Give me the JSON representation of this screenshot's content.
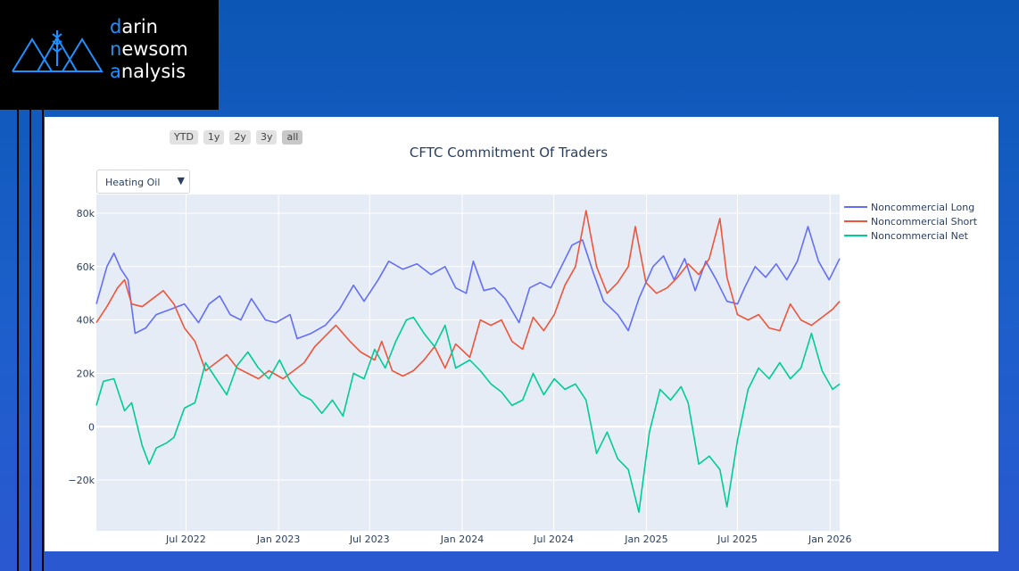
{
  "logo": {
    "line1_first": "d",
    "line1_rest": "arin",
    "line2_first": "n",
    "line2_mid": "ew",
    "line2_rest": "som",
    "line3_first": "a",
    "line3_rest": "nalysis"
  },
  "range_buttons": [
    "YTD",
    "1y",
    "2y",
    "3y",
    "all"
  ],
  "active_range": "all",
  "selector": {
    "value": "Heating Oil",
    "arrow": "▼"
  },
  "colors": {
    "long": "#636efa",
    "short": "#ef553b",
    "net": "#00cc96",
    "plot_bg": "#e5ecf6",
    "text": "#2a3f5f"
  },
  "chart_data": {
    "type": "line",
    "title": "CFTC Commitment Of Traders",
    "x_ticks": [
      "Jul 2022",
      "Jan 2023",
      "Jul 2023",
      "Jan 2024",
      "Jul 2024",
      "Jan 2025",
      "Jul 2025",
      "Jan 2026"
    ],
    "x_range": [
      "2022-01-04",
      "2026-01-20"
    ],
    "ylim": [
      -39000,
      87000
    ],
    "y_ticks": [
      {
        "v": 80000,
        "label": "80k"
      },
      {
        "v": 60000,
        "label": "60k"
      },
      {
        "v": 40000,
        "label": "40k"
      },
      {
        "v": 20000,
        "label": "20k"
      },
      {
        "v": 0,
        "label": "0"
      },
      {
        "v": -20000,
        "label": "−20k"
      }
    ],
    "legend_position": "top-right",
    "series": [
      {
        "name": "Noncommercial Long",
        "color": "#636efa",
        "points": [
          [
            "2022-01-04",
            46000
          ],
          [
            "2022-01-25",
            60000
          ],
          [
            "2022-02-08",
            65000
          ],
          [
            "2022-02-22",
            59000
          ],
          [
            "2022-03-08",
            55000
          ],
          [
            "2022-03-22",
            35000
          ],
          [
            "2022-04-12",
            37000
          ],
          [
            "2022-05-03",
            42000
          ],
          [
            "2022-05-31",
            44000
          ],
          [
            "2022-06-28",
            46000
          ],
          [
            "2022-07-26",
            39000
          ],
          [
            "2022-08-16",
            46000
          ],
          [
            "2022-09-06",
            49000
          ],
          [
            "2022-09-27",
            42000
          ],
          [
            "2022-10-18",
            40000
          ],
          [
            "2022-11-08",
            48000
          ],
          [
            "2022-12-06",
            40000
          ],
          [
            "2022-12-27",
            39000
          ],
          [
            "2023-01-24",
            42000
          ],
          [
            "2023-02-07",
            33000
          ],
          [
            "2023-03-07",
            35000
          ],
          [
            "2023-04-04",
            38000
          ],
          [
            "2023-05-02",
            44000
          ],
          [
            "2023-05-30",
            53000
          ],
          [
            "2023-06-20",
            47000
          ],
          [
            "2023-07-18",
            55000
          ],
          [
            "2023-08-08",
            62000
          ],
          [
            "2023-09-05",
            59000
          ],
          [
            "2023-10-03",
            61000
          ],
          [
            "2023-10-31",
            57000
          ],
          [
            "2023-11-28",
            60000
          ],
          [
            "2023-12-19",
            52000
          ],
          [
            "2024-01-09",
            50000
          ],
          [
            "2024-01-23",
            62000
          ],
          [
            "2024-02-13",
            51000
          ],
          [
            "2024-03-05",
            52000
          ],
          [
            "2024-03-26",
            48000
          ],
          [
            "2024-04-23",
            39000
          ],
          [
            "2024-05-14",
            52000
          ],
          [
            "2024-06-04",
            54000
          ],
          [
            "2024-06-25",
            52000
          ],
          [
            "2024-07-16",
            60000
          ],
          [
            "2024-08-06",
            68000
          ],
          [
            "2024-08-27",
            70000
          ],
          [
            "2024-09-17",
            58000
          ],
          [
            "2024-10-08",
            47000
          ],
          [
            "2024-11-05",
            42000
          ],
          [
            "2024-11-26",
            36000
          ],
          [
            "2024-12-17",
            48000
          ],
          [
            "2025-01-14",
            60000
          ],
          [
            "2025-02-04",
            64000
          ],
          [
            "2025-02-25",
            55000
          ],
          [
            "2025-03-18",
            63000
          ],
          [
            "2025-04-08",
            51000
          ],
          [
            "2025-04-29",
            62000
          ],
          [
            "2025-05-20",
            55000
          ],
          [
            "2025-06-10",
            47000
          ],
          [
            "2025-07-01",
            46000
          ],
          [
            "2025-07-15",
            52000
          ],
          [
            "2025-08-05",
            60000
          ],
          [
            "2025-08-26",
            56000
          ],
          [
            "2025-09-16",
            61000
          ],
          [
            "2025-10-07",
            55000
          ],
          [
            "2025-10-28",
            62000
          ],
          [
            "2025-11-18",
            75000
          ],
          [
            "2025-12-09",
            62000
          ],
          [
            "2025-12-30",
            55000
          ],
          [
            "2026-01-20",
            63000
          ]
        ]
      },
      {
        "name": "Noncommercial Short",
        "color": "#ef553b",
        "points": [
          [
            "2022-01-04",
            39000
          ],
          [
            "2022-01-25",
            45000
          ],
          [
            "2022-02-15",
            52000
          ],
          [
            "2022-03-01",
            55000
          ],
          [
            "2022-03-15",
            46000
          ],
          [
            "2022-04-05",
            45000
          ],
          [
            "2022-04-26",
            48000
          ],
          [
            "2022-05-17",
            51000
          ],
          [
            "2022-06-07",
            46000
          ],
          [
            "2022-06-28",
            37000
          ],
          [
            "2022-07-19",
            32000
          ],
          [
            "2022-08-09",
            21000
          ],
          [
            "2022-08-30",
            24000
          ],
          [
            "2022-09-20",
            27000
          ],
          [
            "2022-10-11",
            22000
          ],
          [
            "2022-11-01",
            20000
          ],
          [
            "2022-11-22",
            18000
          ],
          [
            "2022-12-13",
            21000
          ],
          [
            "2023-01-10",
            18000
          ],
          [
            "2023-01-31",
            21000
          ],
          [
            "2023-02-21",
            24000
          ],
          [
            "2023-03-14",
            30000
          ],
          [
            "2023-04-04",
            34000
          ],
          [
            "2023-04-25",
            38000
          ],
          [
            "2023-05-23",
            32000
          ],
          [
            "2023-06-13",
            28000
          ],
          [
            "2023-07-11",
            25000
          ],
          [
            "2023-07-25",
            32000
          ],
          [
            "2023-08-15",
            21000
          ],
          [
            "2023-09-05",
            19000
          ],
          [
            "2023-09-26",
            21000
          ],
          [
            "2023-10-17",
            25000
          ],
          [
            "2023-11-07",
            30000
          ],
          [
            "2023-11-28",
            22000
          ],
          [
            "2023-12-19",
            31000
          ],
          [
            "2024-01-16",
            26000
          ],
          [
            "2024-02-06",
            40000
          ],
          [
            "2024-02-27",
            38000
          ],
          [
            "2024-03-19",
            40000
          ],
          [
            "2024-04-09",
            32000
          ],
          [
            "2024-04-30",
            29000
          ],
          [
            "2024-05-21",
            41000
          ],
          [
            "2024-06-11",
            36000
          ],
          [
            "2024-07-02",
            42000
          ],
          [
            "2024-07-23",
            53000
          ],
          [
            "2024-08-13",
            60000
          ],
          [
            "2024-09-03",
            81000
          ],
          [
            "2024-09-24",
            60000
          ],
          [
            "2024-10-15",
            50000
          ],
          [
            "2024-11-05",
            54000
          ],
          [
            "2024-11-26",
            60000
          ],
          [
            "2024-12-10",
            75000
          ],
          [
            "2024-12-31",
            54000
          ],
          [
            "2025-01-21",
            50000
          ],
          [
            "2025-02-11",
            52000
          ],
          [
            "2025-03-04",
            56000
          ],
          [
            "2025-03-25",
            61000
          ],
          [
            "2025-04-15",
            57000
          ],
          [
            "2025-05-06",
            63000
          ],
          [
            "2025-05-27",
            78000
          ],
          [
            "2025-06-10",
            56000
          ],
          [
            "2025-07-01",
            42000
          ],
          [
            "2025-07-22",
            40000
          ],
          [
            "2025-08-12",
            42000
          ],
          [
            "2025-09-02",
            37000
          ],
          [
            "2025-09-23",
            36000
          ],
          [
            "2025-10-14",
            46000
          ],
          [
            "2025-11-04",
            40000
          ],
          [
            "2025-11-25",
            38000
          ],
          [
            "2025-12-16",
            41000
          ],
          [
            "2026-01-06",
            44000
          ],
          [
            "2026-01-20",
            47000
          ]
        ]
      },
      {
        "name": "Noncommercial Net",
        "color": "#00cc96",
        "points": [
          [
            "2022-01-04",
            8000
          ],
          [
            "2022-01-18",
            17000
          ],
          [
            "2022-02-08",
            18000
          ],
          [
            "2022-03-01",
            6000
          ],
          [
            "2022-03-15",
            9000
          ],
          [
            "2022-04-05",
            -7000
          ],
          [
            "2022-04-19",
            -14000
          ],
          [
            "2022-05-03",
            -8000
          ],
          [
            "2022-05-24",
            -6000
          ],
          [
            "2022-06-07",
            -4000
          ],
          [
            "2022-06-28",
            7000
          ],
          [
            "2022-07-19",
            9000
          ],
          [
            "2022-08-09",
            24000
          ],
          [
            "2022-08-30",
            18000
          ],
          [
            "2022-09-20",
            12000
          ],
          [
            "2022-10-11",
            23000
          ],
          [
            "2022-11-01",
            28000
          ],
          [
            "2022-11-22",
            22000
          ],
          [
            "2022-12-13",
            18000
          ],
          [
            "2023-01-03",
            25000
          ],
          [
            "2023-01-24",
            17000
          ],
          [
            "2023-02-14",
            12000
          ],
          [
            "2023-03-07",
            10000
          ],
          [
            "2023-03-28",
            5000
          ],
          [
            "2023-04-18",
            10000
          ],
          [
            "2023-05-09",
            4000
          ],
          [
            "2023-05-30",
            20000
          ],
          [
            "2023-06-20",
            18000
          ],
          [
            "2023-07-11",
            29000
          ],
          [
            "2023-08-01",
            22000
          ],
          [
            "2023-08-22",
            32000
          ],
          [
            "2023-09-12",
            40000
          ],
          [
            "2023-09-26",
            41000
          ],
          [
            "2023-10-17",
            35000
          ],
          [
            "2023-11-07",
            30000
          ],
          [
            "2023-11-28",
            38000
          ],
          [
            "2023-12-19",
            22000
          ],
          [
            "2024-01-16",
            25000
          ],
          [
            "2024-02-06",
            21000
          ],
          [
            "2024-02-27",
            16000
          ],
          [
            "2024-03-19",
            13000
          ],
          [
            "2024-04-09",
            8000
          ],
          [
            "2024-04-30",
            10000
          ],
          [
            "2024-05-21",
            20000
          ],
          [
            "2024-06-11",
            12000
          ],
          [
            "2024-07-02",
            18000
          ],
          [
            "2024-07-23",
            14000
          ],
          [
            "2024-08-13",
            16000
          ],
          [
            "2024-09-03",
            10000
          ],
          [
            "2024-09-24",
            -10000
          ],
          [
            "2024-10-15",
            -2000
          ],
          [
            "2024-11-05",
            -12000
          ],
          [
            "2024-11-26",
            -16000
          ],
          [
            "2024-12-17",
            -32000
          ],
          [
            "2025-01-07",
            -2000
          ],
          [
            "2025-01-28",
            14000
          ],
          [
            "2025-02-18",
            10000
          ],
          [
            "2025-03-11",
            15000
          ],
          [
            "2025-03-25",
            9000
          ],
          [
            "2025-04-15",
            -14000
          ],
          [
            "2025-05-06",
            -11000
          ],
          [
            "2025-05-27",
            -16000
          ],
          [
            "2025-06-10",
            -30000
          ],
          [
            "2025-07-01",
            -5000
          ],
          [
            "2025-07-22",
            14000
          ],
          [
            "2025-08-12",
            22000
          ],
          [
            "2025-09-02",
            18000
          ],
          [
            "2025-09-23",
            24000
          ],
          [
            "2025-10-14",
            18000
          ],
          [
            "2025-11-04",
            22000
          ],
          [
            "2025-11-25",
            35000
          ],
          [
            "2025-12-16",
            21000
          ],
          [
            "2026-01-06",
            14000
          ],
          [
            "2026-01-20",
            16000
          ]
        ]
      }
    ]
  }
}
